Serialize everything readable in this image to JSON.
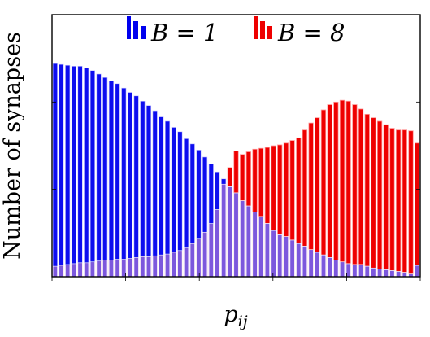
{
  "chart_data": {
    "type": "bar",
    "title": "",
    "xlabel": "p",
    "xlabel_subscript": "ij",
    "ylabel": "Number of synapses",
    "xlim": [
      0,
      1
    ],
    "ylim": [
      0,
      300
    ],
    "grid": false,
    "legend_position": "top",
    "series": [
      {
        "name": "B = 1",
        "color": "#0000ee",
        "values": [
          244,
          243,
          242,
          241,
          241,
          239,
          236,
          232,
          228,
          224,
          221,
          216,
          211,
          207,
          201,
          196,
          190,
          183,
          178,
          171,
          166,
          158,
          152,
          145,
          137,
          129,
          120,
          112,
          103,
          96,
          87,
          81,
          74,
          69,
          61,
          53,
          48,
          46,
          42,
          38,
          35,
          31,
          28,
          25,
          22,
          19,
          17,
          15,
          14,
          14,
          12,
          10,
          9,
          8,
          7,
          6,
          5,
          4,
          13
        ]
      },
      {
        "name": "B = 8",
        "color": "#ee0000",
        "values": [
          12,
          13,
          14,
          15,
          16,
          16,
          17,
          18,
          19,
          19,
          20,
          20,
          21,
          22,
          23,
          23,
          24,
          25,
          26,
          28,
          30,
          33,
          38,
          44,
          51,
          61,
          77,
          106,
          125,
          144,
          140,
          143,
          146,
          147,
          148,
          150,
          151,
          153,
          156,
          159,
          168,
          176,
          182,
          191,
          197,
          200,
          202,
          201,
          197,
          192,
          186,
          182,
          178,
          174,
          170,
          168,
          168,
          167,
          153
        ]
      }
    ],
    "legend": [
      {
        "label": "B = 1",
        "color": "#0000ee"
      },
      {
        "label": "B = 8",
        "color": "#ee0000"
      }
    ]
  }
}
